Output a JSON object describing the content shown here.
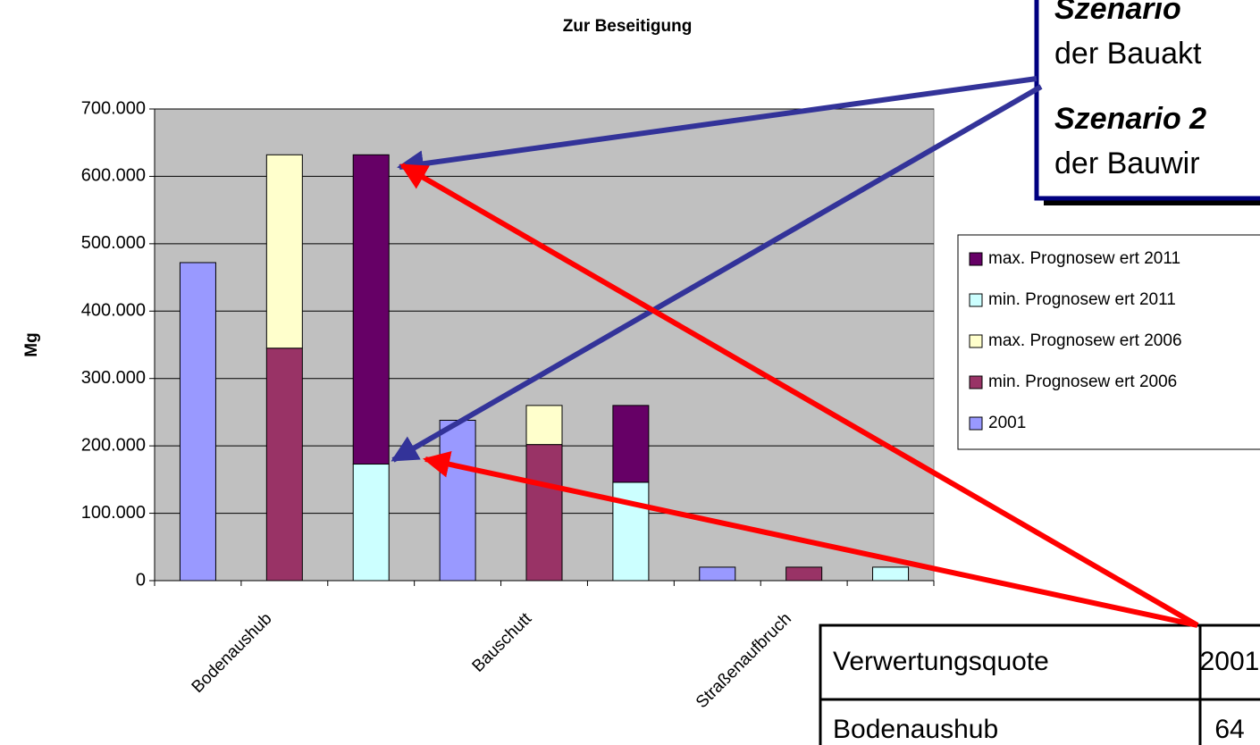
{
  "chart_data": {
    "type": "bar",
    "stacked": true,
    "title": "Zur Beseitigung",
    "ylabel": "Mg",
    "categories": [
      "Bodenaushub",
      null,
      null,
      "Bauschutt",
      null,
      null,
      "Straßenaufbruch",
      null,
      null
    ],
    "series": [
      {
        "name": "2001",
        "color": "#9999ff",
        "values": [
          472000,
          null,
          null,
          238000,
          null,
          null,
          20000,
          null,
          null
        ]
      },
      {
        "name": "min. Prognosew ert 2006",
        "color": "#993366",
        "values": [
          null,
          345000,
          null,
          null,
          202000,
          null,
          null,
          20000,
          null
        ]
      },
      {
        "name": "max. Prognosew ert 2006",
        "color": "#ffffcc",
        "values": [
          null,
          287000,
          null,
          null,
          58000,
          null,
          null,
          null,
          null
        ]
      },
      {
        "name": "min. Prognosew ert 2011",
        "color": "#ccffff",
        "values": [
          null,
          null,
          173000,
          null,
          null,
          146000,
          null,
          null,
          20000
        ]
      },
      {
        "name": "max. Prognosew ert 2011",
        "color": "#660066",
        "values": [
          null,
          null,
          459000,
          null,
          null,
          114000,
          null,
          null,
          null
        ]
      }
    ],
    "ylim": [
      0,
      700000
    ],
    "yticks": [
      0,
      {
        "value": 100000,
        "label": "100.000"
      },
      {
        "value": 200000,
        "label": "200.000"
      },
      {
        "value": 300000,
        "label": "300.000"
      },
      {
        "value": 400000,
        "label": "400.000"
      },
      {
        "value": 500000,
        "label": "500.000"
      },
      {
        "value": 600000,
        "label": "600.000"
      },
      {
        "value": 700000,
        "label": "700.000"
      }
    ],
    "grid": true,
    "legend": "right",
    "background": "#c0c0c0"
  },
  "annotation": {
    "lines": [
      "Szenario",
      "der Bauakt",
      "Szenario 2",
      "der Bauwir"
    ]
  },
  "table": {
    "rows": [
      [
        "Verwertungsquote",
        "2001"
      ],
      [
        "Bodenaushub",
        "64"
      ]
    ]
  }
}
